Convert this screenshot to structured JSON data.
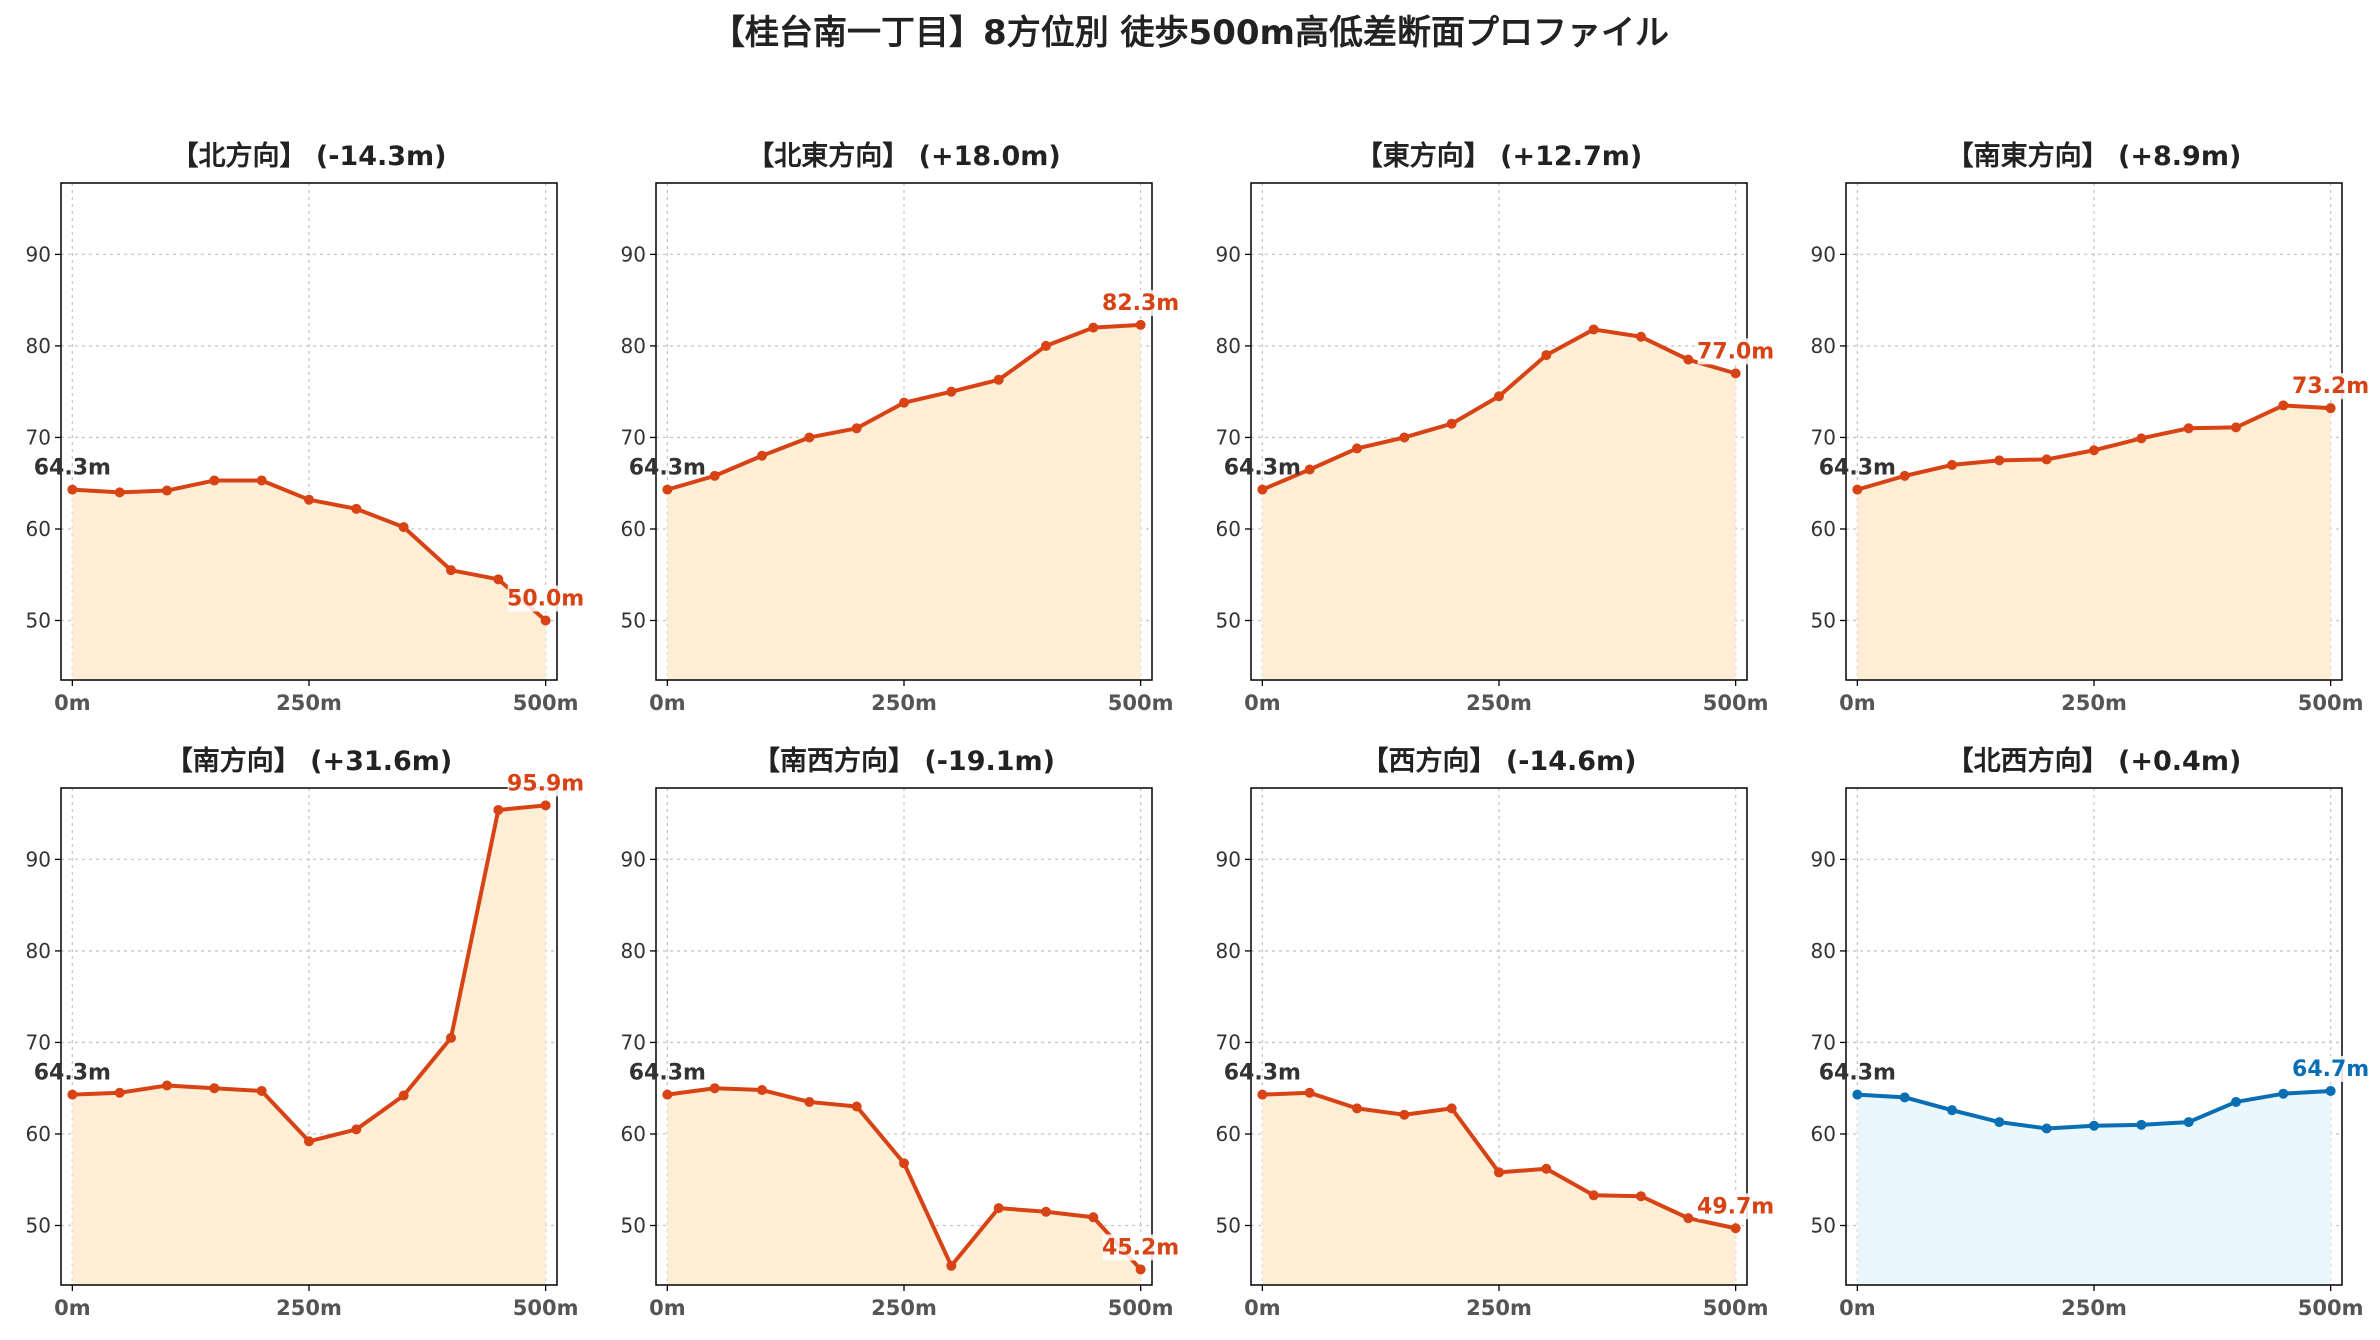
{
  "title": "【桂台南一丁目】8方位別 徒歩500m高低差断面プロファイル",
  "colors": {
    "down_line": "#d84315",
    "down_fill": "#ffeed6",
    "flat_line": "#0a6eb4",
    "flat_fill": "#eaf7fd",
    "start_label": "#333333"
  },
  "chart_data": [
    {
      "type": "area",
      "title": "【北方向】 (-14.3m)",
      "x": [
        0,
        50,
        100,
        150,
        200,
        250,
        300,
        350,
        400,
        450,
        500
      ],
      "values": [
        64.3,
        64.0,
        64.2,
        65.3,
        65.3,
        63.2,
        62.2,
        60.2,
        55.5,
        54.5,
        50.0
      ],
      "start_label": "64.3m",
      "end_label": "50.0m",
      "xticks": [
        "0m",
        "250m",
        "500m"
      ],
      "yticks": [
        "50",
        "60",
        "70",
        "80",
        "90"
      ],
      "ylim": [
        43.5,
        97.8
      ],
      "xlim": [
        -12,
        512
      ],
      "grid": true,
      "style": "down"
    },
    {
      "type": "area",
      "title": "【北東方向】 (+18.0m)",
      "x": [
        0,
        50,
        100,
        150,
        200,
        250,
        300,
        350,
        400,
        450,
        500
      ],
      "values": [
        64.3,
        65.8,
        68.0,
        70.0,
        71.0,
        73.8,
        75.0,
        76.3,
        80.0,
        82.0,
        82.3
      ],
      "start_label": "64.3m",
      "end_label": "82.3m",
      "xticks": [
        "0m",
        "250m",
        "500m"
      ],
      "yticks": [
        "50",
        "60",
        "70",
        "80",
        "90"
      ],
      "ylim": [
        43.5,
        97.8
      ],
      "xlim": [
        -12,
        512
      ],
      "grid": true,
      "style": "down"
    },
    {
      "type": "area",
      "title": "【東方向】 (+12.7m)",
      "x": [
        0,
        50,
        100,
        150,
        200,
        250,
        300,
        350,
        400,
        450,
        500
      ],
      "values": [
        64.3,
        66.5,
        68.8,
        70.0,
        71.5,
        74.5,
        79.0,
        81.8,
        81.0,
        78.5,
        77.0
      ],
      "start_label": "64.3m",
      "end_label": "77.0m",
      "xticks": [
        "0m",
        "250m",
        "500m"
      ],
      "yticks": [
        "50",
        "60",
        "70",
        "80",
        "90"
      ],
      "ylim": [
        43.5,
        97.8
      ],
      "xlim": [
        -12,
        512
      ],
      "grid": true,
      "style": "down"
    },
    {
      "type": "area",
      "title": "【南東方向】 (+8.9m)",
      "x": [
        0,
        50,
        100,
        150,
        200,
        250,
        300,
        350,
        400,
        450,
        500
      ],
      "values": [
        64.3,
        65.8,
        67.0,
        67.5,
        67.6,
        68.6,
        69.9,
        71.0,
        71.1,
        73.5,
        73.2
      ],
      "start_label": "64.3m",
      "end_label": "73.2m",
      "xticks": [
        "0m",
        "250m",
        "500m"
      ],
      "yticks": [
        "50",
        "60",
        "70",
        "80",
        "90"
      ],
      "ylim": [
        43.5,
        97.8
      ],
      "xlim": [
        -12,
        512
      ],
      "grid": true,
      "style": "down"
    },
    {
      "type": "area",
      "title": "【南方向】 (+31.6m)",
      "x": [
        0,
        50,
        100,
        150,
        200,
        250,
        300,
        350,
        400,
        450,
        500
      ],
      "values": [
        64.3,
        64.5,
        65.3,
        65.0,
        64.7,
        59.2,
        60.5,
        64.2,
        70.5,
        95.4,
        95.9
      ],
      "start_label": "64.3m",
      "end_label": "95.9m",
      "xticks": [
        "0m",
        "250m",
        "500m"
      ],
      "yticks": [
        "50",
        "60",
        "70",
        "80",
        "90"
      ],
      "ylim": [
        43.5,
        97.8
      ],
      "xlim": [
        -12,
        512
      ],
      "grid": true,
      "style": "down"
    },
    {
      "type": "area",
      "title": "【南西方向】 (-19.1m)",
      "x": [
        0,
        50,
        100,
        150,
        200,
        250,
        300,
        350,
        400,
        450,
        500
      ],
      "values": [
        64.3,
        65.0,
        64.8,
        63.5,
        63.0,
        56.8,
        45.6,
        51.9,
        51.5,
        50.9,
        45.2
      ],
      "start_label": "64.3m",
      "end_label": "45.2m",
      "xticks": [
        "0m",
        "250m",
        "500m"
      ],
      "yticks": [
        "50",
        "60",
        "70",
        "80",
        "90"
      ],
      "ylim": [
        43.5,
        97.8
      ],
      "xlim": [
        -12,
        512
      ],
      "grid": true,
      "style": "down"
    },
    {
      "type": "area",
      "title": "【西方向】 (-14.6m)",
      "x": [
        0,
        50,
        100,
        150,
        200,
        250,
        300,
        350,
        400,
        450,
        500
      ],
      "values": [
        64.3,
        64.5,
        62.8,
        62.1,
        62.8,
        55.8,
        56.2,
        53.3,
        53.2,
        50.8,
        49.7
      ],
      "start_label": "64.3m",
      "end_label": "49.7m",
      "xticks": [
        "0m",
        "250m",
        "500m"
      ],
      "yticks": [
        "50",
        "60",
        "70",
        "80",
        "90"
      ],
      "ylim": [
        43.5,
        97.8
      ],
      "xlim": [
        -12,
        512
      ],
      "grid": true,
      "style": "down"
    },
    {
      "type": "area",
      "title": "【北西方向】 (+0.4m)",
      "x": [
        0,
        50,
        100,
        150,
        200,
        250,
        300,
        350,
        400,
        450,
        500
      ],
      "values": [
        64.3,
        64.0,
        62.6,
        61.3,
        60.6,
        60.9,
        61.0,
        61.3,
        63.5,
        64.4,
        64.7
      ],
      "start_label": "64.3m",
      "end_label": "64.7m",
      "xticks": [
        "0m",
        "250m",
        "500m"
      ],
      "yticks": [
        "50",
        "60",
        "70",
        "80",
        "90"
      ],
      "ylim": [
        43.5,
        97.8
      ],
      "xlim": [
        -12,
        512
      ],
      "grid": true,
      "style": "flat"
    }
  ]
}
